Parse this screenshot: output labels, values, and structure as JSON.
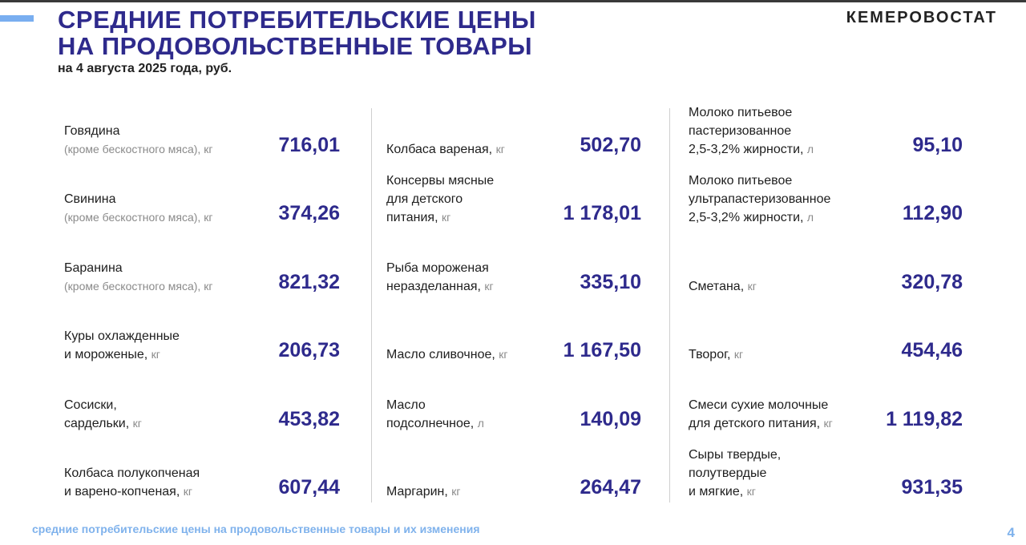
{
  "header": {
    "title_line1": "СРЕДНИЕ ПОТРЕБИТЕЛЬСКИЕ ЦЕНЫ",
    "title_line2": "НА ПРОДОВОЛЬСТВЕННЫЕ ТОВАРЫ",
    "subtitle": "на 4 августа 2025 года, руб.",
    "brand": "КЕМЕРОВОСТАТ"
  },
  "colors": {
    "accent": "#2e2a8c",
    "light_blue": "#7fb2ec"
  },
  "columns": [
    [
      {
        "lines": [
          "Говядина"
        ],
        "note": "(кроме бескостного мяса), кг",
        "value": "716,01"
      },
      {
        "lines": [
          "Свинина"
        ],
        "note": "(кроме бескостного мяса), кг",
        "value": "374,26"
      },
      {
        "lines": [
          "Баранина"
        ],
        "note": "(кроме бескостного мяса), кг",
        "value": "821,32"
      },
      {
        "lines": [
          "Куры охлажденные",
          "и мороженые,"
        ],
        "unit": "кг",
        "value": "206,73"
      },
      {
        "lines": [
          "Сосиски,",
          "сардельки,"
        ],
        "unit": "кг",
        "value": "453,82"
      },
      {
        "lines": [
          "Колбаса полукопченая",
          "и варено-копченая,"
        ],
        "unit": "кг",
        "value": "607,44"
      }
    ],
    [
      {
        "lines": [
          "Колбаса вареная,"
        ],
        "unit": "кг",
        "value": "502,70"
      },
      {
        "lines": [
          "Консервы мясные",
          "для детского",
          "питания,"
        ],
        "unit": "кг",
        "value": "1 178,01"
      },
      {
        "lines": [
          "Рыба мороженая",
          "неразделанная,"
        ],
        "unit": "кг",
        "value": "335,10"
      },
      {
        "lines": [
          "Масло сливочное,"
        ],
        "unit": "кг",
        "value": "1 167,50"
      },
      {
        "lines": [
          "Масло",
          "подсолнечное,"
        ],
        "unit": "л",
        "value": "140,09"
      },
      {
        "lines": [
          "Маргарин,"
        ],
        "unit": "кг",
        "value": "264,47"
      }
    ],
    [
      {
        "lines": [
          "Молоко питьевое",
          "пастеризованное",
          "2,5-3,2% жирности,"
        ],
        "unit": "л",
        "value": "95,10"
      },
      {
        "lines": [
          "Молоко питьевое",
          "ультрапастеризованное",
          "2,5-3,2% жирности,"
        ],
        "unit": "л",
        "value": "112,90"
      },
      {
        "lines": [
          "Сметана,"
        ],
        "unit": "кг",
        "value": "320,78"
      },
      {
        "lines": [
          "Творог,"
        ],
        "unit": "кг",
        "value": "454,46"
      },
      {
        "lines": [
          "Смеси сухие молочные",
          "для детского питания,"
        ],
        "unit": "кг",
        "value": "1 119,82"
      },
      {
        "lines": [
          "Сыры твердые,",
          "полутвердые",
          "и мягкие,"
        ],
        "unit": "кг",
        "value": "931,35"
      }
    ]
  ],
  "footer": {
    "text": "средние потребительские цены на продовольственные товары и их изменения",
    "page": "4"
  }
}
